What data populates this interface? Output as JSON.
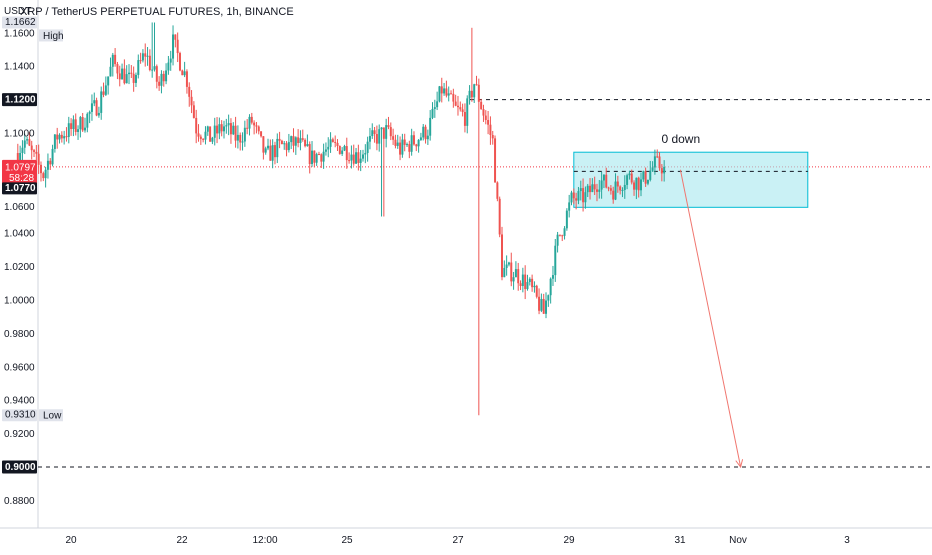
{
  "header": {
    "currency": "USDT",
    "title": "XRP / TetherUS PERPETUAL FUTURES, 1h, BINANCE"
  },
  "price_axis": {
    "ticks": [
      "1.1600",
      "1.1400",
      "1.1000",
      "1.0400",
      "1.0200",
      "1.0000",
      "0.9800",
      "0.9600",
      "0.9400",
      "0.9200",
      "0.8800"
    ],
    "tick_values": [
      1.16,
      1.14,
      1.1,
      1.04,
      1.02,
      1.0,
      0.98,
      0.96,
      0.94,
      0.92,
      0.88
    ]
  },
  "badges": {
    "high_value": "1.1662",
    "high_label": "High",
    "low_value": "0.9310",
    "low_label": "Low",
    "resistance": "1.1200",
    "last_price": "1.0797",
    "countdown": "58:28",
    "box_mid": "1.0770",
    "support": "0.9000",
    "level_1060": "1.0600"
  },
  "time_axis": {
    "labels": [
      "20",
      "22",
      "12:00",
      "25",
      "27",
      "29",
      "31",
      "Nov",
      "3"
    ]
  },
  "annotations": {
    "box_label": "0 down"
  },
  "colors": {
    "up": "#26a69a",
    "down": "#ef5350",
    "box_fill": "#a7e8ef",
    "box_stroke": "#00bcd4",
    "arrow": "#f0766f",
    "last_price_bg": "#f23645",
    "level_bg": "#131722"
  },
  "chart_data": {
    "type": "candlestick",
    "symbol": "XRP / TetherUS PERPETUAL FUTURES",
    "interval": "1h",
    "exchange": "BINANCE",
    "ylim": [
      0.87,
      1.17
    ],
    "scale": "linear",
    "grid": false,
    "high": 1.1662,
    "low": 0.931,
    "last_price": 1.0797,
    "levels": [
      1.12,
      1.077,
      0.9
    ],
    "anchors": [
      [
        "19 00:00",
        1.088
      ],
      [
        "19 04:00",
        1.095
      ],
      [
        "19 12:00",
        1.075
      ],
      [
        "19 18:00",
        1.098
      ],
      [
        "20 04:00",
        1.105
      ],
      [
        "20 12:00",
        1.118
      ],
      [
        "20 18:00",
        1.142
      ],
      [
        "21 02:00",
        1.13
      ],
      [
        "21 08:00",
        1.148
      ],
      [
        "21 14:00",
        1.128
      ],
      [
        "21 20:00",
        1.154
      ],
      [
        "22 02:00",
        1.132
      ],
      [
        "22 06:00",
        1.103
      ],
      [
        "22 12:00",
        1.097
      ],
      [
        "22 18:00",
        1.104
      ],
      [
        "23 00:00",
        1.096
      ],
      [
        "23 06:00",
        1.107
      ],
      [
        "23 12:00",
        1.086
      ],
      [
        "23 18:00",
        1.092
      ],
      [
        "24 02:00",
        1.094
      ],
      [
        "24 08:00",
        1.085
      ],
      [
        "24 14:00",
        1.09
      ],
      [
        "24 20:00",
        1.092
      ],
      [
        "25 04:00",
        1.086
      ],
      [
        "25 10:00",
        1.096
      ],
      [
        "25 16:00",
        1.101
      ],
      [
        "25 22:00",
        1.09
      ],
      [
        "26 04:00",
        1.095
      ],
      [
        "26 10:00",
        1.102
      ],
      [
        "26 16:00",
        1.126
      ],
      [
        "26 22:00",
        1.114
      ],
      [
        "27 02:00",
        1.11
      ],
      [
        "27 06:00",
        1.13
      ],
      [
        "27 10:00",
        1.112
      ],
      [
        "27 14:00",
        1.095
      ],
      [
        "27 18:00",
        1.018
      ],
      [
        "28 00:00",
        1.016
      ],
      [
        "28 06:00",
        1.008
      ],
      [
        "28 12:00",
        0.992
      ],
      [
        "28 18:00",
        1.035
      ],
      [
        "29 00:00",
        1.06
      ],
      [
        "29 06:00",
        1.062
      ],
      [
        "29 12:00",
        1.072
      ],
      [
        "29 18:00",
        1.066
      ],
      [
        "30 00:00",
        1.074
      ],
      [
        "30 06:00",
        1.07
      ],
      [
        "30 12:00",
        1.081
      ],
      [
        "30 16:00",
        1.0797
      ]
    ],
    "projection": {
      "box": {
        "from": "29 01:00",
        "to": "Nov 2 06:00",
        "top": 1.0885,
        "bottom": 1.0555
      },
      "arrow": {
        "from_time": "30 23:00",
        "from_price": 1.078,
        "to_time": "Nov 1 01:00",
        "to_price": 0.9
      },
      "label": "0 down"
    }
  }
}
